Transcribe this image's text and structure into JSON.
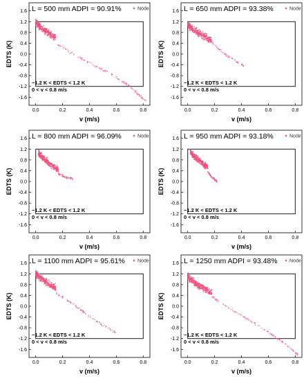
{
  "colors": {
    "series": "#f0507c",
    "axis": "#000000"
  },
  "chart_data": [
    {
      "type": "scatter",
      "title": "L = 500 mm   ADPI = 90.91%",
      "legend": "Node",
      "legend_position": "top-right",
      "xlabel": "v (m/s)",
      "ylabel": "EDTS (K)",
      "xlim": [
        -0.05,
        0.85
      ],
      "ylim": [
        -1.9,
        1.9
      ],
      "xticks": [
        "0.0",
        "0.2",
        "0.4",
        "0.6",
        "0.8"
      ],
      "yticks": [
        "-1.6",
        "-1.2",
        "-0.8",
        "-0.4",
        "0.0",
        "0.4",
        "0.8",
        "1.2",
        "1.6"
      ],
      "comfort_zone": {
        "v": [
          0,
          0.8
        ],
        "edts": [
          -1.2,
          1.2
        ]
      },
      "annotation": [
        "−1.2 K < EDTS < 1.2 K",
        "0 < v < 0.8 m/s"
      ],
      "cloud": {
        "x": [
          0.0,
          0.15
        ],
        "y": [
          0.4,
          1.4
        ]
      },
      "tail": [
        [
          0.15,
          0.4
        ],
        [
          0.35,
          -0.2
        ],
        [
          0.55,
          -0.7
        ],
        [
          0.7,
          -1.2
        ],
        [
          0.82,
          -1.75
        ]
      ]
    },
    {
      "type": "scatter",
      "title": "L = 650 mm   ADPI = 93.38%",
      "legend": "Node",
      "legend_position": "top-right",
      "xlabel": "v (m/s)",
      "ylabel": "EDTS (K)",
      "xlim": [
        -0.05,
        0.85
      ],
      "ylim": [
        -1.9,
        1.9
      ],
      "xticks": [
        "0.0",
        "0.2",
        "0.4",
        "0.6",
        "0.8"
      ],
      "yticks": [
        "-1.6",
        "-1.2",
        "-0.8",
        "-0.4",
        "0.0",
        "0.4",
        "0.8",
        "1.2",
        "1.6"
      ],
      "comfort_zone": {
        "v": [
          0,
          0.8
        ],
        "edts": [
          -1.2,
          1.2
        ]
      },
      "annotation": [
        "−1.2 K < EDTS < 1.2 K",
        "0 < v < 0.8 m/s"
      ],
      "cloud": {
        "x": [
          0.0,
          0.18
        ],
        "y": [
          0.3,
          1.3
        ]
      },
      "tail": [
        [
          0.18,
          0.4
        ],
        [
          0.3,
          -0.1
        ],
        [
          0.42,
          -0.45
        ]
      ]
    },
    {
      "type": "scatter",
      "title": "L = 800 mm   ADPI = 96.09%",
      "legend": "Node",
      "legend_position": "top-right",
      "xlabel": "v (m/s)",
      "ylabel": "EDTS (K)",
      "xlim": [
        -0.05,
        0.85
      ],
      "ylim": [
        -1.9,
        1.9
      ],
      "xticks": [
        "0.0",
        "0.2",
        "0.4",
        "0.6",
        "0.8"
      ],
      "yticks": [
        "-1.6",
        "-1.2",
        "-0.8",
        "-0.4",
        "0.0",
        "0.4",
        "0.8",
        "1.2",
        "1.6"
      ],
      "comfort_zone": {
        "v": [
          0,
          0.8
        ],
        "edts": [
          -1.2,
          1.2
        ]
      },
      "annotation": [
        "−1.2 K < EDTS < 1.2 K",
        "0 < v < 0.8 m/s"
      ],
      "cloud": {
        "x": [
          0.02,
          0.17
        ],
        "y": [
          0.2,
          1.3
        ]
      },
      "tail": [
        [
          0.17,
          0.3
        ],
        [
          0.22,
          0.15
        ],
        [
          0.28,
          0.1
        ]
      ]
    },
    {
      "type": "scatter",
      "title": "L = 950 mm   ADPI = 93.18%",
      "legend": "Node",
      "legend_position": "top-right",
      "xlabel": "v (m/s)",
      "ylabel": "EDTS (K)",
      "xlim": [
        -0.05,
        0.85
      ],
      "ylim": [
        -1.9,
        1.9
      ],
      "xticks": [
        "0.0",
        "0.2",
        "0.4",
        "0.6",
        "0.8"
      ],
      "yticks": [
        "-1.6",
        "-1.2",
        "-0.8",
        "-0.4",
        "0.0",
        "0.4",
        "0.8",
        "1.2",
        "1.6"
      ],
      "comfort_zone": {
        "v": [
          0,
          0.8
        ],
        "edts": [
          -1.2,
          1.2
        ]
      },
      "annotation": [
        "−1.2 K < EDTS < 1.2 K",
        "0 < v < 0.8 m/s"
      ],
      "cloud": {
        "x": [
          0.02,
          0.15
        ],
        "y": [
          0.35,
          1.3
        ]
      },
      "tail": [
        [
          0.15,
          0.35
        ],
        [
          0.18,
          0.15
        ],
        [
          0.22,
          0.0
        ]
      ]
    },
    {
      "type": "scatter",
      "title": "L = 1100 mm   ADPI = 95.61%",
      "legend": "Node",
      "legend_position": "top-right",
      "xlabel": "v (m/s)",
      "ylabel": "EDTS (K)",
      "xlim": [
        -0.05,
        0.85
      ],
      "ylim": [
        -1.9,
        1.9
      ],
      "xticks": [
        "0.0",
        "0.2",
        "0.4",
        "0.6",
        "0.8"
      ],
      "yticks": [
        "-1.6",
        "-1.2",
        "-0.8",
        "-0.4",
        "0.0",
        "0.4",
        "0.8",
        "1.2",
        "1.6"
      ],
      "comfort_zone": {
        "v": [
          0,
          0.8
        ],
        "edts": [
          -1.2,
          1.2
        ]
      },
      "annotation": [
        "−1.2 K < EDTS < 1.2 K",
        "0 < v < 0.8 m/s"
      ],
      "cloud": {
        "x": [
          0.0,
          0.15
        ],
        "y": [
          0.5,
          1.4
        ]
      },
      "tail": [
        [
          0.15,
          0.5
        ],
        [
          0.3,
          0.0
        ],
        [
          0.45,
          -0.55
        ],
        [
          0.6,
          -1.0
        ]
      ]
    },
    {
      "type": "scatter",
      "title": "L = 1250 mm   ADPI = 93.48%",
      "legend": "Node",
      "legend_position": "top-right",
      "xlabel": "v (m/s)",
      "ylabel": "EDTS (K)",
      "xlim": [
        -0.05,
        0.85
      ],
      "ylim": [
        -1.9,
        1.9
      ],
      "xticks": [
        "0.0",
        "0.2",
        "0.4",
        "0.6",
        "0.8"
      ],
      "yticks": [
        "-1.6",
        "-1.2",
        "-0.8",
        "-0.4",
        "0.0",
        "0.4",
        "0.8",
        "1.2",
        "1.6"
      ],
      "comfort_zone": {
        "v": [
          0,
          0.8
        ],
        "edts": [
          -1.2,
          1.2
        ]
      },
      "annotation": [
        "−1.2 K < EDTS < 1.2 K",
        "0 < v < 0.8 m/s"
      ],
      "cloud": {
        "x": [
          0.0,
          0.18
        ],
        "y": [
          0.3,
          1.3
        ]
      },
      "tail": [
        [
          0.18,
          0.35
        ],
        [
          0.35,
          -0.2
        ],
        [
          0.55,
          -0.8
        ],
        [
          0.7,
          -1.3
        ],
        [
          0.82,
          -1.8
        ]
      ]
    }
  ]
}
